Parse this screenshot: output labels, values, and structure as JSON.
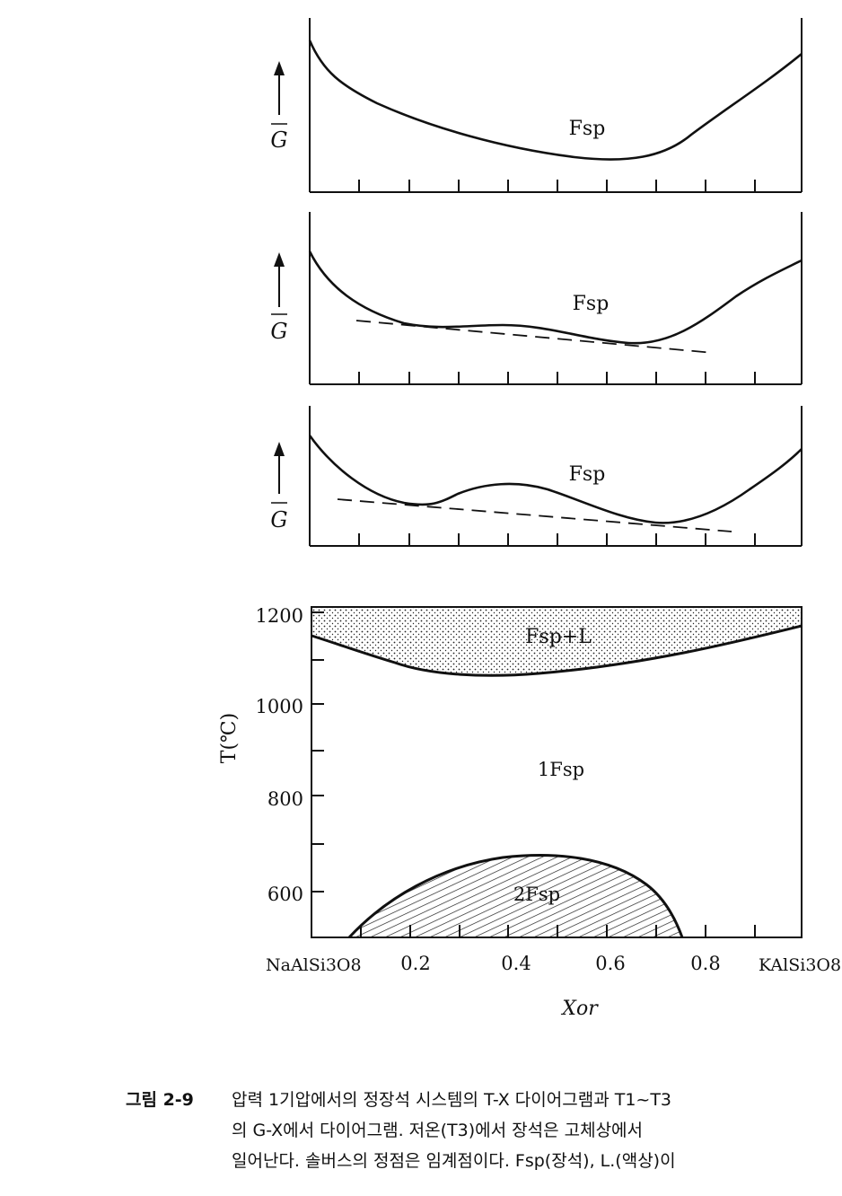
{
  "panels": [
    {
      "gbar_label": "G",
      "phase_label": "Fsp"
    },
    {
      "gbar_label": "G",
      "phase_label": "Fsp"
    },
    {
      "gbar_label": "G",
      "phase_label": "Fsp"
    }
  ],
  "phase_diagram": {
    "y_axis_label": "T(℃)",
    "x_axis_label": "Xor",
    "y_ticks": [
      "1200",
      "1000",
      "800",
      "600"
    ],
    "x_ticks": [
      "0.2",
      "0.4",
      "0.6",
      "0.8"
    ],
    "left_endmember": "NaAlSi3O8",
    "right_endmember": "KAlSi3O8",
    "regions": {
      "liquid": "Fsp+L",
      "single": "1Fsp",
      "two": "2Fsp"
    }
  },
  "caption": {
    "figure_number": "그림 2-9",
    "lines": [
      "압력 1기압에서의 정장석 시스템의 T-X 다이어그램과 T1~T3",
      "의 G-X에서 다이어그램. 저온(T3)에서 장석은 고체상에서",
      "일어난다. 솔버스의 정점은 임계점이다. Fsp(장석), L.(액상)이"
    ]
  }
}
